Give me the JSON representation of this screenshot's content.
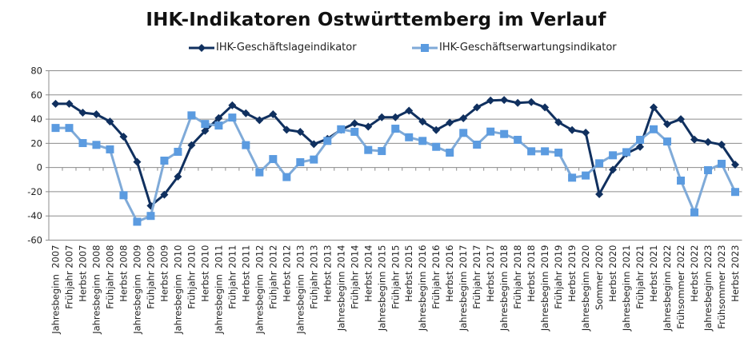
{
  "chart_data": {
    "type": "line",
    "title": "IHK-Indikatoren Ostwürttemberg im Verlauf",
    "xlabel": "",
    "ylabel": "",
    "ylim": [
      -60,
      80
    ],
    "yticks": [
      80,
      60,
      40,
      20,
      0,
      -20,
      -40,
      -60
    ],
    "grid": true,
    "legend_position": "top",
    "categories": [
      "Jahresbeginn  2007",
      "Frühjahr 2007",
      "Herbst 2007",
      "Jahresbeginn  2008",
      "Frühjahr 2008",
      "Herbst 2008",
      "Jahresbeginn  2009",
      "Frühjahr 2009",
      "Herbst 2009",
      "Jahresbeginn  2010",
      "Frühjahr 2010",
      "Herbst 2010",
      "Jahresbeginn  2011",
      "Frühjahr 2011",
      "Herbst 2011",
      "Jahresbeginn  2012",
      "Frühjahr 2012",
      "Herbst 2012",
      "Jahresbeginn  2013",
      "Frühjahr 2013",
      "Herbst 2013",
      "Jahresbeginn 2014",
      "Frühjahr 2014",
      "Herbst 2014",
      "Jahresbeginn 2015",
      "Frühjahr 2015",
      "Herbst 2015",
      "Jahresbeginn 2016",
      "Frühjahr 2016",
      "Herbst 2016",
      "Jahresbeginn 2017",
      "Frühjahr 2017",
      "Herbst 2017",
      "Jahresbeginn 2018",
      "Frühjahr 2018",
      "Herbst 2018",
      "Jahresbeginn 2019",
      "Frühjahr 2019",
      "Herbst 2019",
      "Jahresbeginn 2020",
      "Sommer 2020",
      "Herbst 2020",
      "Jahresbeginn 2021",
      "Frühjahr 2021",
      "Herbst 2021",
      "Jahresbeginn 2022",
      "Frühsommer 2022",
      "Herbst 2022",
      "Jahresbeginn 2023",
      "Frühsommer 2023",
      "Herbst 2023"
    ],
    "series": [
      {
        "name": "IHK-Geschäftslageindikator",
        "color": "#10305f",
        "marker": "diamond",
        "values": [
          52.7,
          52.7,
          45.3,
          44,
          38,
          25.5,
          4.6,
          -31.6,
          -22.4,
          -7.5,
          18.5,
          30.3,
          40.9,
          51.4,
          44.8,
          39.1,
          44,
          31.2,
          29.5,
          19.3,
          23.7,
          31.2,
          36.5,
          33.8,
          41.5,
          41.5,
          47,
          38,
          31,
          37.1,
          40.7,
          49.7,
          55.4,
          55.8,
          53.4,
          54.1,
          49.7,
          37.4,
          31,
          28.8,
          -22,
          -1.8,
          11.6,
          17.1,
          49.7,
          35.8,
          40,
          23.1,
          21.1,
          18.9,
          2.4
        ]
      },
      {
        "name": "IHK-Geschäftserwartungsindikator",
        "color": "#6d9fd6",
        "marker": "square",
        "values": [
          32.7,
          32.7,
          20.2,
          18.7,
          15,
          -22.9,
          -44.8,
          -40,
          5.7,
          13,
          43.1,
          36,
          34.7,
          41.3,
          18.5,
          -4,
          7,
          -7.9,
          4.4,
          6.6,
          22,
          31.6,
          29.5,
          14.5,
          13.6,
          32.1,
          25,
          22,
          17.1,
          12.3,
          28.6,
          18.9,
          29.7,
          27.7,
          22.9,
          13.4,
          13.4,
          12.3,
          -8.4,
          -6.6,
          3.5,
          10.1,
          12.7,
          22.9,
          31.6,
          21.5,
          -10.8,
          -37.1,
          -2.2,
          3.1,
          -20.2
        ]
      }
    ]
  },
  "legend": {
    "series_0": "IHK-Geschäftslageindikator",
    "series_1": "IHK-Geschäftserwartungsindikator"
  }
}
